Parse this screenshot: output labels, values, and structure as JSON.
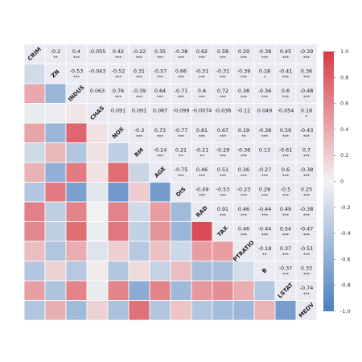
{
  "chart_data": {
    "type": "heatmap",
    "title": "",
    "variables": [
      "CRIM",
      "ZN",
      "INDUS",
      "CHAS",
      "NOX",
      "RM",
      "AGE",
      "DIS",
      "RAD",
      "TAX",
      "PTRATIO",
      "B",
      "LSTAT",
      "MEDV"
    ],
    "matrix": [
      [
        1,
        -0.2,
        0.4,
        -0.055,
        0.42,
        -0.22,
        0.35,
        -0.38,
        0.62,
        0.58,
        0.29,
        -0.38,
        0.45,
        -0.39
      ],
      [
        -0.2,
        1,
        -0.53,
        -0.043,
        -0.52,
        0.31,
        -0.57,
        0.66,
        -0.31,
        -0.31,
        -0.39,
        0.18,
        -0.41,
        0.36
      ],
      [
        0.4,
        -0.53,
        1,
        0.063,
        0.76,
        -0.39,
        0.64,
        -0.71,
        0.6,
        0.72,
        0.38,
        -0.36,
        0.6,
        -0.48
      ],
      [
        -0.055,
        -0.043,
        0.063,
        1,
        0.091,
        0.091,
        0.087,
        -0.099,
        -0.0074,
        -0.036,
        -0.12,
        0.049,
        -0.054,
        0.18
      ],
      [
        0.42,
        -0.52,
        0.76,
        0.091,
        1,
        -0.3,
        0.73,
        -0.77,
        0.61,
        0.67,
        0.19,
        -0.38,
        0.59,
        -0.43
      ],
      [
        -0.22,
        0.31,
        -0.39,
        0.091,
        -0.3,
        1,
        -0.24,
        0.21,
        -0.21,
        -0.29,
        -0.36,
        0.13,
        -0.61,
        0.7
      ],
      [
        0.35,
        -0.57,
        0.64,
        0.087,
        0.73,
        -0.24,
        1,
        -0.75,
        0.46,
        0.51,
        0.26,
        -0.27,
        0.6,
        -0.38
      ],
      [
        -0.38,
        0.66,
        -0.71,
        -0.099,
        -0.77,
        0.21,
        -0.75,
        1,
        -0.49,
        -0.53,
        -0.23,
        0.29,
        -0.5,
        0.25
      ],
      [
        0.62,
        -0.31,
        0.6,
        -0.0074,
        0.61,
        -0.21,
        0.46,
        -0.49,
        1,
        0.91,
        0.46,
        -0.44,
        0.49,
        -0.38
      ],
      [
        0.58,
        -0.31,
        0.72,
        -0.036,
        0.67,
        -0.29,
        0.51,
        -0.53,
        0.91,
        1,
        0.46,
        -0.44,
        0.54,
        -0.47
      ],
      [
        0.29,
        -0.39,
        0.38,
        -0.12,
        0.19,
        -0.36,
        0.26,
        -0.23,
        0.46,
        0.46,
        1,
        -0.18,
        0.37,
        -0.51
      ],
      [
        -0.38,
        0.18,
        -0.36,
        0.049,
        -0.38,
        0.13,
        -0.27,
        0.29,
        -0.44,
        -0.44,
        -0.18,
        1,
        -0.37,
        0.33
      ],
      [
        0.45,
        -0.41,
        0.6,
        -0.054,
        0.59,
        -0.61,
        0.6,
        -0.5,
        0.49,
        0.54,
        0.37,
        -0.37,
        1,
        -0.74
      ],
      [
        -0.39,
        0.36,
        -0.48,
        0.18,
        -0.43,
        0.7,
        -0.38,
        0.25,
        -0.38,
        -0.47,
        -0.51,
        0.33,
        -0.74,
        1
      ]
    ],
    "upper_labels": {
      "0,1": [
        "-0.2",
        "**"
      ],
      "0,2": [
        "0.4",
        "***"
      ],
      "0,3": [
        "-0.055",
        ""
      ],
      "0,4": [
        "0.42",
        "***"
      ],
      "0,5": [
        "-0.22",
        "***"
      ],
      "0,6": [
        "0.35",
        "***"
      ],
      "0,7": [
        "-0.38",
        "***"
      ],
      "0,8": [
        "0.62",
        "***"
      ],
      "0,9": [
        "0.58",
        "***"
      ],
      "0,10": [
        "0.29",
        "***"
      ],
      "0,11": [
        "-0.38",
        "***"
      ],
      "0,12": [
        "0.45",
        "***"
      ],
      "0,13": [
        "-0.39",
        "***"
      ],
      "1,2": [
        "-0.53",
        "***"
      ],
      "1,3": [
        "-0.043",
        ""
      ],
      "1,4": [
        "-0.52",
        "***"
      ],
      "1,5": [
        "0.31",
        "***"
      ],
      "1,6": [
        "-0.57",
        "***"
      ],
      "1,7": [
        "0.66",
        "***"
      ],
      "1,8": [
        "-0.31",
        "***"
      ],
      "1,9": [
        "-0.31",
        "***"
      ],
      "1,10": [
        "-0.39",
        "***"
      ],
      "1,11": [
        "0.18",
        "*"
      ],
      "1,12": [
        "-0.41",
        "***"
      ],
      "1,13": [
        "0.36",
        "***"
      ],
      "2,3": [
        "0.063",
        ""
      ],
      "2,4": [
        "0.76",
        "***"
      ],
      "2,5": [
        "-0.39",
        "***"
      ],
      "2,6": [
        "0.64",
        "***"
      ],
      "2,7": [
        "-0.71",
        "***"
      ],
      "2,8": [
        "0.6",
        "***"
      ],
      "2,9": [
        "0.72",
        "***"
      ],
      "2,10": [
        "0.38",
        "***"
      ],
      "2,11": [
        "-0.36",
        "***"
      ],
      "2,12": [
        "0.6",
        "***"
      ],
      "2,13": [
        "-0.48",
        "***"
      ],
      "3,4": [
        "0.091",
        ""
      ],
      "3,5": [
        "0.091",
        ""
      ],
      "3,6": [
        "0.087",
        ""
      ],
      "3,7": [
        "-0.099",
        ""
      ],
      "3,8": [
        "-0.0074",
        ""
      ],
      "3,9": [
        "-0.036",
        ""
      ],
      "3,10": [
        "-0.12",
        ""
      ],
      "3,11": [
        "0.049",
        ""
      ],
      "3,12": [
        "-0.054",
        ""
      ],
      "3,13": [
        "0.18",
        "*"
      ],
      "4,5": [
        "-0.3",
        "***"
      ],
      "4,6": [
        "0.73",
        "***"
      ],
      "4,7": [
        "-0.77",
        "***"
      ],
      "4,8": [
        "0.61",
        "***"
      ],
      "4,9": [
        "0.67",
        "***"
      ],
      "4,10": [
        "0.19",
        "**"
      ],
      "4,11": [
        "-0.38",
        "***"
      ],
      "4,12": [
        "0.59",
        "***"
      ],
      "4,13": [
        "-0.43",
        "***"
      ],
      "5,6": [
        "-0.24",
        "***"
      ],
      "5,7": [
        "0.21",
        "**"
      ],
      "5,8": [
        "-0.21",
        "**"
      ],
      "5,9": [
        "-0.29",
        "***"
      ],
      "5,10": [
        "-0.36",
        "***"
      ],
      "5,11": [
        "0.13",
        ""
      ],
      "5,12": [
        "-0.61",
        "***"
      ],
      "5,13": [
        "0.7",
        "***"
      ],
      "6,7": [
        "-0.75",
        "***"
      ],
      "6,8": [
        "0.46",
        "***"
      ],
      "6,9": [
        "0.51",
        "***"
      ],
      "6,10": [
        "0.26",
        "***"
      ],
      "6,11": [
        "-0.27",
        "***"
      ],
      "6,12": [
        "0.6",
        "***"
      ],
      "6,13": [
        "-0.38",
        "***"
      ],
      "7,8": [
        "-0.49",
        "***"
      ],
      "7,9": [
        "-0.53",
        "***"
      ],
      "7,10": [
        "-0.23",
        "***"
      ],
      "7,11": [
        "0.29",
        "***"
      ],
      "7,12": [
        "-0.5",
        "***"
      ],
      "7,13": [
        "0.25",
        "***"
      ],
      "8,9": [
        "0.91",
        "***"
      ],
      "8,10": [
        "0.46",
        "***"
      ],
      "8,11": [
        "-0.44",
        "***"
      ],
      "8,12": [
        "0.49",
        "***"
      ],
      "8,13": [
        "-0.38",
        "***"
      ],
      "9,10": [
        "0.46",
        "***"
      ],
      "9,11": [
        "-0.44",
        "***"
      ],
      "9,12": [
        "0.54",
        "***"
      ],
      "9,13": [
        "-0.47",
        "***"
      ],
      "10,11": [
        "-0.18",
        "**"
      ],
      "10,12": [
        "0.37",
        "***"
      ],
      "10,13": [
        "-0.51",
        "***"
      ],
      "11,12": [
        "-0.37",
        "***"
      ],
      "11,13": [
        "0.33",
        "***"
      ],
      "12,13": [
        "-0.74",
        "***"
      ]
    },
    "colorbar": {
      "range": [
        -1.0,
        1.0
      ],
      "ticks": [
        "1.0",
        "0.8",
        "0.6",
        "0.4",
        "0.2",
        "0",
        "-0.2",
        "-0.4",
        "-0.6",
        "-0.8",
        "-1.0"
      ],
      "colormap": "diverging blue-white-red",
      "negative_color": "#4a7fc1",
      "neutral_color": "#f2f2f2",
      "positive_color": "#d93a45"
    },
    "lower_triangle": "color",
    "diagonal": "variable name",
    "upper_triangle": "value and significance stars",
    "grid": true,
    "legend": "right"
  }
}
